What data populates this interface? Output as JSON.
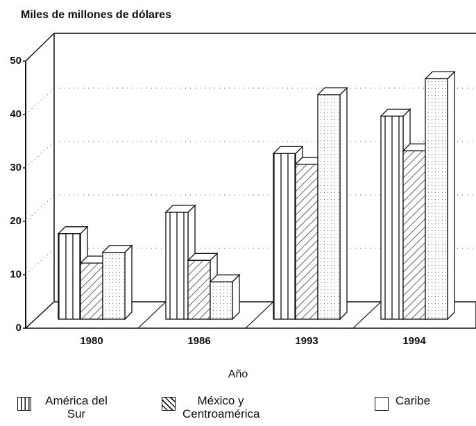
{
  "chart_data": {
    "type": "bar",
    "title": "Miles de millones de dólares",
    "x_label": "Año",
    "categories": [
      "1980",
      "1986",
      "1993",
      "1994"
    ],
    "series": [
      {
        "name": "América del Sur",
        "values": [
          16,
          20,
          31,
          38
        ]
      },
      {
        "name": "México y Centroamérica",
        "values": [
          10.5,
          11,
          29,
          31.5
        ]
      },
      {
        "name": "Caribe",
        "values": [
          12.5,
          7,
          42,
          45
        ]
      }
    ],
    "ylim": [
      0,
      50
    ],
    "yticks": [
      0,
      10,
      20,
      30,
      40,
      50
    ],
    "grid": true
  }
}
